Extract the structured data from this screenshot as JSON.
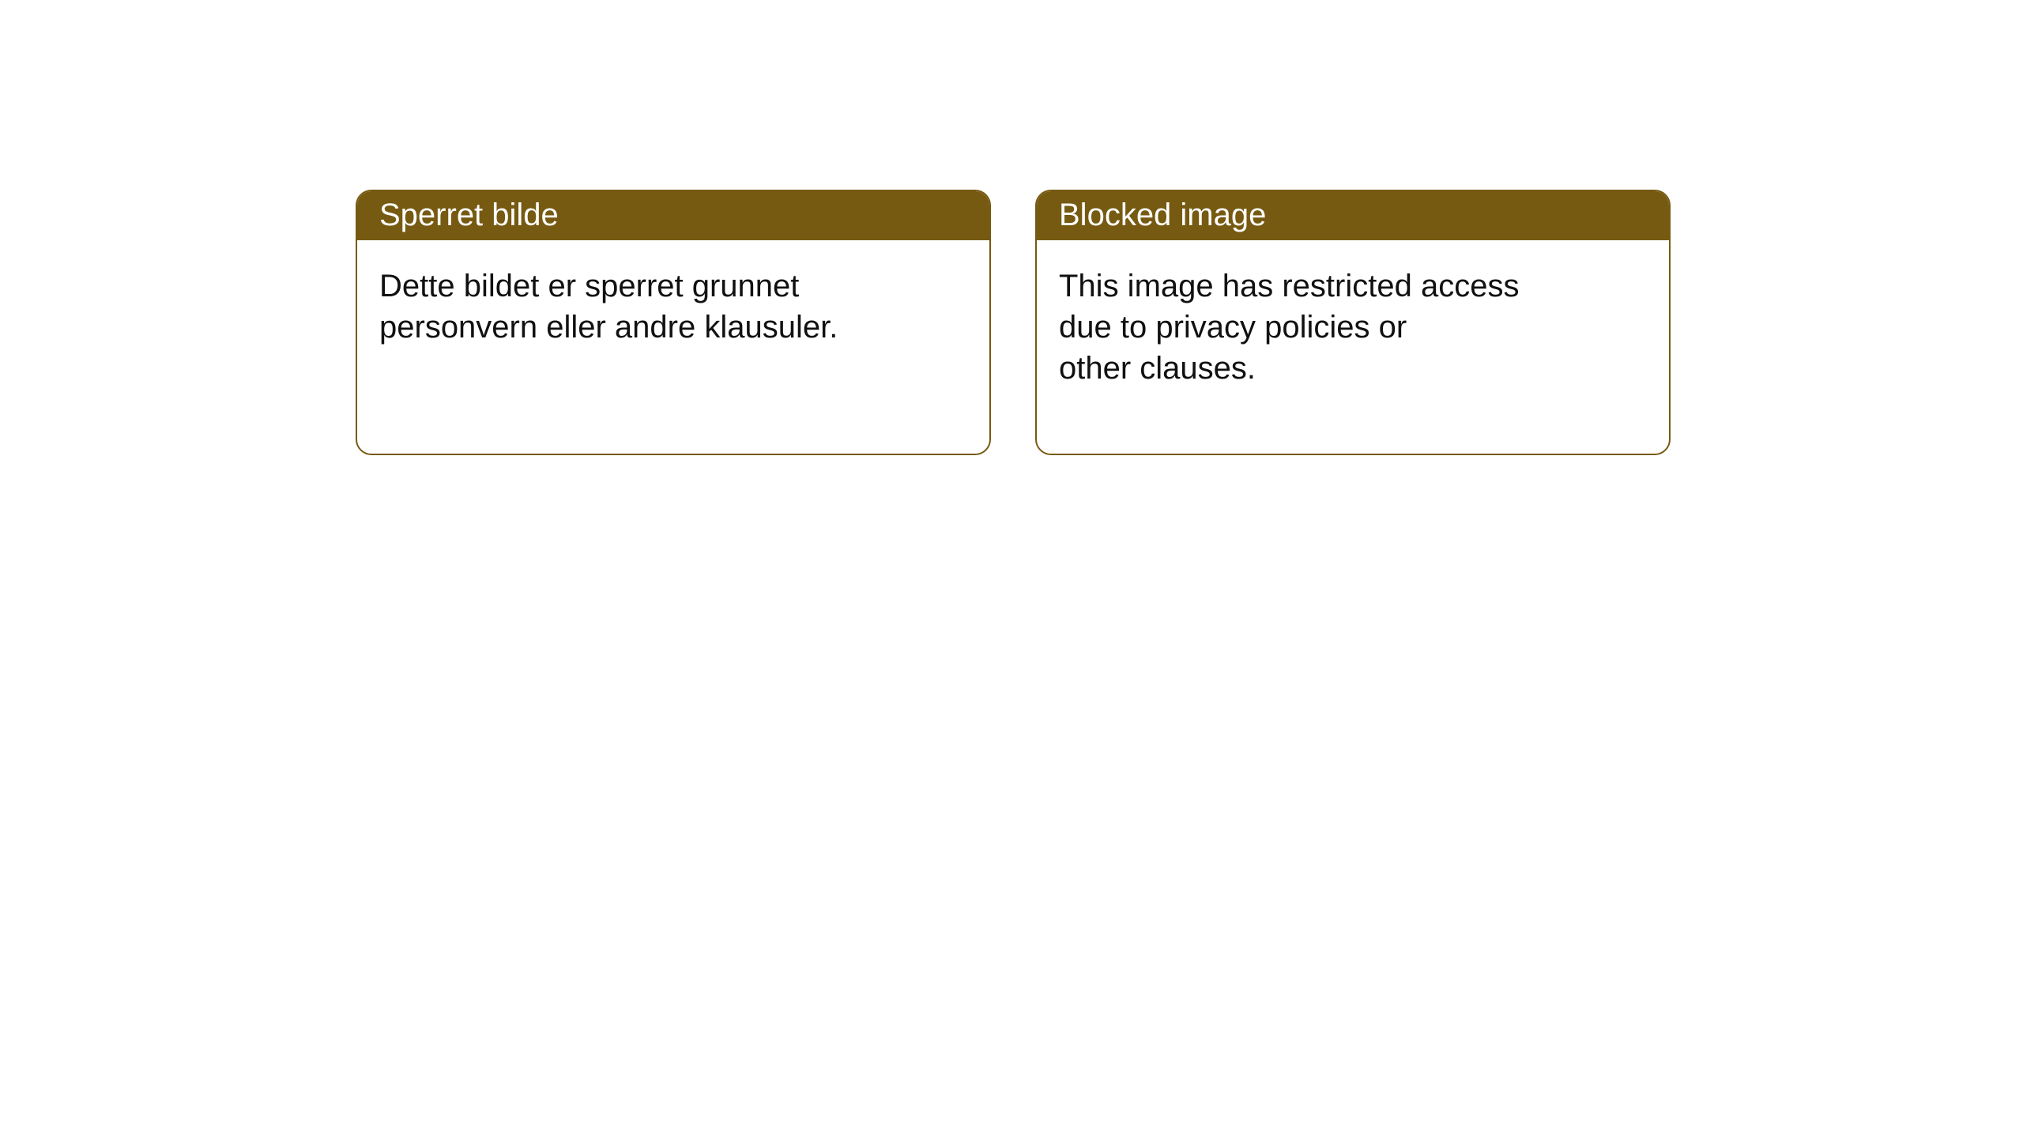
{
  "colors": {
    "header_bg": "#765a11",
    "header_fg": "#ffffff",
    "card_border": "#765a11",
    "card_bg": "#ffffff",
    "body_fg": "#111111"
  },
  "cards": [
    {
      "title": "Sperret bilde",
      "body": "Dette bildet er sperret grunnet\npersonvern eller andre klausuler."
    },
    {
      "title": "Blocked image",
      "body": "This image has restricted access\ndue to privacy policies or\nother clauses."
    }
  ]
}
